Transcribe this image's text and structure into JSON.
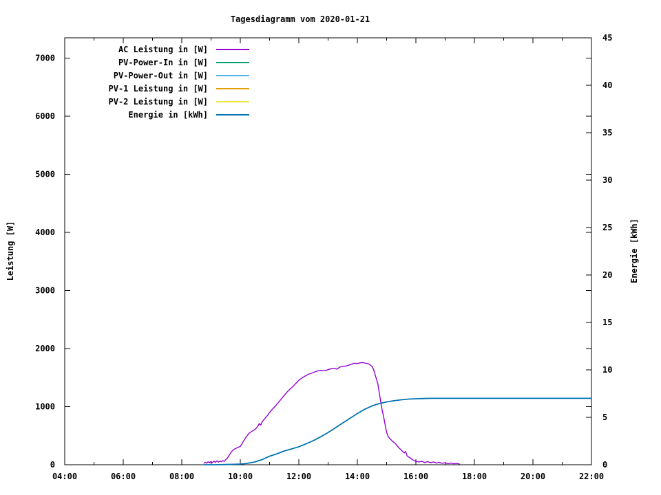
{
  "title": "Tagesdiagramm vom 2020-01-21",
  "axes": {
    "x": {
      "tick_labels": [
        "04:00",
        "06:00",
        "08:00",
        "10:00",
        "12:00",
        "14:00",
        "16:00",
        "18:00",
        "20:00",
        "22:00"
      ],
      "tick_hours": [
        4,
        6,
        8,
        10,
        12,
        14,
        16,
        18,
        20,
        22
      ],
      "minor_tick_hours": [
        5,
        7,
        9,
        11,
        13,
        15,
        17,
        19,
        21
      ]
    },
    "y1": {
      "label": "Leistung [W]",
      "tick_labels": [
        "0",
        "1000",
        "2000",
        "3000",
        "4000",
        "5000",
        "6000",
        "7000"
      ],
      "tick_values": [
        0,
        1000,
        2000,
        3000,
        4000,
        5000,
        6000,
        7000
      ]
    },
    "y2": {
      "label": "Energie [kWh]",
      "tick_labels": [
        "0",
        "5",
        "10",
        "15",
        "20",
        "25",
        "30",
        "35",
        "40",
        "45"
      ],
      "tick_values": [
        0,
        5,
        10,
        15,
        20,
        25,
        30,
        35,
        40,
        45
      ]
    }
  },
  "chart_data": {
    "type": "line",
    "title": "Tagesdiagramm vom 2020-01-21",
    "xlabel": "",
    "x_unit": "time of day (hours)",
    "x_range": [
      4,
      22
    ],
    "x_ticks": [
      "04:00",
      "06:00",
      "08:00",
      "10:00",
      "12:00",
      "14:00",
      "16:00",
      "18:00",
      "20:00",
      "22:00"
    ],
    "y1_axis": {
      "label": "Leistung [W]",
      "range": [
        0,
        7350
      ],
      "ticks": [
        0,
        1000,
        2000,
        3000,
        4000,
        5000,
        6000,
        7000
      ]
    },
    "y2_axis": {
      "label": "Energie [kWh]",
      "range": [
        0,
        45
      ],
      "ticks": [
        0,
        5,
        10,
        15,
        20,
        25,
        30,
        35,
        40,
        45
      ]
    },
    "grid": false,
    "legend_position": "top-left-inside",
    "series": [
      {
        "name": "AC Leistung in [W]",
        "color": "#9400D3",
        "axis": "y1",
        "points": [
          [
            8.75,
            25
          ],
          [
            8.8,
            42
          ],
          [
            8.85,
            28
          ],
          [
            8.9,
            52
          ],
          [
            8.95,
            34
          ],
          [
            9.0,
            58
          ],
          [
            9.05,
            36
          ],
          [
            9.1,
            62
          ],
          [
            9.15,
            42
          ],
          [
            9.2,
            68
          ],
          [
            9.25,
            44
          ],
          [
            9.3,
            64
          ],
          [
            9.35,
            52
          ],
          [
            9.4,
            72
          ],
          [
            9.45,
            58
          ],
          [
            9.5,
            88
          ],
          [
            9.55,
            110
          ],
          [
            9.6,
            145
          ],
          [
            9.65,
            185
          ],
          [
            9.7,
            225
          ],
          [
            9.75,
            252
          ],
          [
            9.8,
            270
          ],
          [
            9.85,
            282
          ],
          [
            9.9,
            295
          ],
          [
            10.0,
            315
          ],
          [
            10.1,
            400
          ],
          [
            10.2,
            480
          ],
          [
            10.3,
            542
          ],
          [
            10.4,
            578
          ],
          [
            10.5,
            608
          ],
          [
            10.6,
            662
          ],
          [
            10.65,
            710
          ],
          [
            10.7,
            682
          ],
          [
            10.75,
            742
          ],
          [
            10.85,
            802
          ],
          [
            10.95,
            862
          ],
          [
            11.0,
            900
          ],
          [
            11.1,
            958
          ],
          [
            11.2,
            1012
          ],
          [
            11.3,
            1072
          ],
          [
            11.4,
            1132
          ],
          [
            11.5,
            1195
          ],
          [
            11.6,
            1252
          ],
          [
            11.7,
            1302
          ],
          [
            11.8,
            1348
          ],
          [
            11.9,
            1402
          ],
          [
            12.0,
            1455
          ],
          [
            12.1,
            1492
          ],
          [
            12.2,
            1522
          ],
          [
            12.3,
            1552
          ],
          [
            12.45,
            1580
          ],
          [
            12.6,
            1608
          ],
          [
            12.75,
            1625
          ],
          [
            12.9,
            1618
          ],
          [
            13.0,
            1638
          ],
          [
            13.1,
            1652
          ],
          [
            13.2,
            1660
          ],
          [
            13.3,
            1645
          ],
          [
            13.4,
            1682
          ],
          [
            13.5,
            1692
          ],
          [
            13.6,
            1700
          ],
          [
            13.7,
            1712
          ],
          [
            13.8,
            1730
          ],
          [
            13.9,
            1748
          ],
          [
            14.0,
            1742
          ],
          [
            14.1,
            1755
          ],
          [
            14.2,
            1758
          ],
          [
            14.3,
            1745
          ],
          [
            14.4,
            1732
          ],
          [
            14.5,
            1692
          ],
          [
            14.55,
            1645
          ],
          [
            14.6,
            1565
          ],
          [
            14.65,
            1480
          ],
          [
            14.7,
            1390
          ],
          [
            14.75,
            1235
          ],
          [
            14.8,
            1080
          ],
          [
            14.85,
            935
          ],
          [
            14.9,
            820
          ],
          [
            14.95,
            685
          ],
          [
            15.0,
            560
          ],
          [
            15.05,
            492
          ],
          [
            15.1,
            452
          ],
          [
            15.15,
            432
          ],
          [
            15.2,
            405
          ],
          [
            15.3,
            362
          ],
          [
            15.4,
            302
          ],
          [
            15.5,
            252
          ],
          [
            15.6,
            202
          ],
          [
            15.65,
            228
          ],
          [
            15.7,
            152
          ],
          [
            15.8,
            118
          ],
          [
            15.9,
            82
          ],
          [
            16.0,
            58
          ],
          [
            16.1,
            48
          ],
          [
            16.2,
            60
          ],
          [
            16.3,
            38
          ],
          [
            16.4,
            55
          ],
          [
            16.5,
            34
          ],
          [
            16.6,
            48
          ],
          [
            16.7,
            28
          ],
          [
            16.8,
            40
          ],
          [
            16.9,
            24
          ],
          [
            17.0,
            34
          ],
          [
            17.1,
            18
          ],
          [
            17.2,
            28
          ],
          [
            17.3,
            16
          ],
          [
            17.4,
            22
          ],
          [
            17.5,
            12
          ]
        ]
      },
      {
        "name": "PV-Power-In in [W]",
        "color": "#009E73",
        "axis": "y1",
        "points": []
      },
      {
        "name": "PV-Power-Out in [W]",
        "color": "#56B4E9",
        "axis": "y1",
        "points": []
      },
      {
        "name": "PV-1 Leistung in [W]",
        "color": "#E69F00",
        "axis": "y1",
        "points": []
      },
      {
        "name": "PV-2 Leistung in [W]",
        "color": "#F0E442",
        "axis": "y1",
        "points": []
      },
      {
        "name": "Energie in [kWh]",
        "color": "#0072B2",
        "axis": "y2",
        "points": [
          [
            8.75,
            0
          ],
          [
            9.0,
            0
          ],
          [
            9.25,
            0.01
          ],
          [
            9.5,
            0.02
          ],
          [
            9.75,
            0.04
          ],
          [
            10.0,
            0.07
          ],
          [
            10.25,
            0.15
          ],
          [
            10.5,
            0.3
          ],
          [
            10.75,
            0.55
          ],
          [
            11.0,
            0.9
          ],
          [
            11.25,
            1.15
          ],
          [
            11.5,
            1.45
          ],
          [
            11.75,
            1.67
          ],
          [
            12.0,
            1.9
          ],
          [
            12.25,
            2.2
          ],
          [
            12.5,
            2.55
          ],
          [
            12.75,
            2.95
          ],
          [
            13.0,
            3.4
          ],
          [
            13.25,
            3.9
          ],
          [
            13.5,
            4.4
          ],
          [
            13.75,
            4.9
          ],
          [
            14.0,
            5.4
          ],
          [
            14.25,
            5.85
          ],
          [
            14.5,
            6.2
          ],
          [
            14.75,
            6.45
          ],
          [
            15.0,
            6.62
          ],
          [
            15.25,
            6.75
          ],
          [
            15.5,
            6.85
          ],
          [
            15.75,
            6.92
          ],
          [
            16.0,
            6.96
          ],
          [
            16.25,
            6.98
          ],
          [
            16.5,
            7.0
          ],
          [
            17.0,
            7.0
          ],
          [
            18.0,
            7.0
          ],
          [
            19.0,
            7.0
          ],
          [
            20.0,
            7.0
          ],
          [
            21.0,
            7.0
          ],
          [
            22.0,
            7.0
          ]
        ]
      }
    ]
  },
  "colors": {
    "background": "#ffffff",
    "border": "#000000",
    "text": "#000000"
  }
}
